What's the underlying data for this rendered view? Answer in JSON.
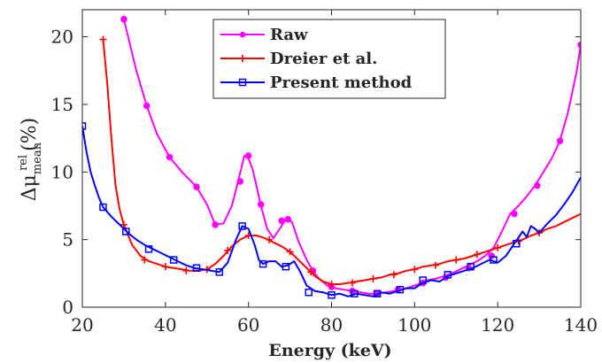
{
  "chart_data": {
    "type": "line",
    "xlabel": "Energy (keV)",
    "ylabel": "Δμ_mean^rel (%)",
    "xlim": [
      20,
      140
    ],
    "ylim": [
      0,
      22
    ],
    "xticks": [
      20,
      40,
      60,
      80,
      100,
      120,
      140
    ],
    "yticks": [
      0,
      5,
      10,
      15,
      20
    ],
    "xtick_labels": [
      "20",
      "40",
      "60",
      "80",
      "100",
      "120",
      "140"
    ],
    "ytick_labels": [
      "0",
      "5",
      "10",
      "15",
      "20"
    ],
    "grid": false,
    "legend_position": "top-center",
    "series": [
      {
        "name": "Raw",
        "color": "#ff00ff",
        "marker": "circle",
        "x": [
          30,
          33,
          35.5,
          38,
          41,
          44,
          47.5,
          50,
          52,
          54,
          56,
          57.5,
          59,
          60,
          61,
          62,
          63,
          64.5,
          66,
          67.5,
          69,
          70.5,
          72,
          74,
          75.5,
          77,
          79,
          81,
          83,
          85,
          87,
          89,
          91,
          93,
          95,
          97,
          99,
          101,
          103,
          105,
          107,
          109,
          111,
          113,
          115,
          117,
          119,
          121,
          123,
          125,
          127,
          129,
          131,
          133,
          135,
          137,
          139,
          140
        ],
        "y": [
          21.3,
          17.5,
          14.9,
          12.8,
          11.1,
          10.0,
          8.9,
          7.6,
          6.1,
          6.2,
          7.5,
          9.3,
          11.2,
          11.0,
          10.2,
          8.9,
          7.5,
          5.8,
          5.1,
          5.8,
          6.5,
          6.3,
          4.9,
          3.5,
          2.7,
          2.1,
          1.6,
          1.4,
          1.3,
          1.2,
          1.1,
          1.0,
          1.0,
          1.1,
          1.2,
          1.3,
          1.5,
          1.7,
          2.0,
          2.1,
          2.3,
          2.5,
          2.8,
          3.1,
          3.4,
          3.8,
          4.4,
          5.6,
          6.9,
          7.5,
          8.2,
          9.0,
          10.0,
          11.0,
          12.3,
          14.5,
          17.4,
          19.4
        ],
        "marker_x": [
          30,
          35.5,
          41,
          47.5,
          52,
          58,
          60,
          63,
          68,
          69.5,
          75.5,
          80,
          85,
          91,
          96,
          102,
          107.5,
          113,
          118.5,
          124,
          129.5,
          135,
          140
        ],
        "marker_y": [
          21.3,
          14.9,
          11.1,
          8.9,
          6.1,
          9.3,
          11.2,
          7.6,
          6.4,
          6.5,
          2.7,
          1.5,
          1.2,
          1.0,
          1.3,
          1.8,
          2.2,
          2.9,
          3.8,
          6.9,
          9.0,
          12.3,
          19.4
        ]
      },
      {
        "name": "Dreier et al.",
        "color": "#ff0000",
        "marker": "plus",
        "x": [
          25,
          26,
          27,
          28,
          29,
          30,
          32,
          34,
          36,
          38,
          40,
          42,
          44,
          46,
          48,
          50,
          52,
          54,
          56,
          58,
          60,
          62,
          64,
          66,
          68,
          70,
          72,
          74,
          76,
          78,
          80,
          82,
          84,
          86,
          88,
          90,
          92,
          94,
          96,
          98,
          100,
          102,
          104,
          106,
          108,
          110,
          112,
          114,
          116,
          118,
          120,
          122,
          124,
          126,
          128,
          130,
          132,
          134,
          136,
          138,
          140
        ],
        "y": [
          19.8,
          16.5,
          12.5,
          9.0,
          7.2,
          6.1,
          4.6,
          3.8,
          3.4,
          3.2,
          3.0,
          2.9,
          2.8,
          2.7,
          2.7,
          2.8,
          3.2,
          3.8,
          4.5,
          5.0,
          5.3,
          5.3,
          5.1,
          4.8,
          4.5,
          4.1,
          3.5,
          2.9,
          2.3,
          1.9,
          1.7,
          1.7,
          1.8,
          1.9,
          2.0,
          2.1,
          2.2,
          2.4,
          2.5,
          2.7,
          2.8,
          3.0,
          3.1,
          3.2,
          3.4,
          3.5,
          3.6,
          3.8,
          4.0,
          4.2,
          4.4,
          4.6,
          4.8,
          5.0,
          5.3,
          5.5,
          5.8,
          6.0,
          6.3,
          6.6,
          6.9
        ],
        "marker_x": [
          25,
          30,
          35,
          40,
          45,
          50,
          55,
          60,
          65,
          70,
          75,
          80,
          85,
          90,
          95,
          100,
          105,
          110,
          115,
          120,
          125,
          130
        ],
        "marker_y": [
          19.8,
          6.1,
          3.5,
          3.0,
          2.7,
          2.8,
          4.2,
          5.3,
          5.0,
          4.1,
          2.6,
          1.7,
          1.8,
          2.1,
          2.4,
          2.8,
          3.1,
          3.5,
          3.9,
          4.4,
          4.9,
          5.5
        ]
      },
      {
        "name": "Present method",
        "color": "#0000ff",
        "marker": "square",
        "x": [
          20,
          21,
          22,
          23,
          24,
          25,
          27,
          29,
          31,
          33,
          35,
          37,
          39,
          41,
          43,
          45,
          47,
          49,
          51,
          53,
          55,
          57,
          58.5,
          60,
          61.5,
          62.5,
          63.5,
          65,
          66.5,
          68,
          69.5,
          71,
          72.5,
          74,
          76,
          78,
          80,
          82,
          84,
          86,
          88,
          90,
          92,
          94,
          96,
          98,
          100,
          102,
          104,
          106,
          108,
          110,
          112,
          114,
          116,
          118,
          120,
          122,
          124,
          126,
          127,
          128,
          129,
          130,
          132,
          134,
          136,
          138,
          140
        ],
        "y": [
          13.4,
          11.5,
          10.0,
          9.0,
          8.1,
          7.4,
          6.7,
          6.1,
          5.5,
          5.0,
          4.6,
          4.3,
          4.0,
          3.7,
          3.4,
          3.1,
          2.9,
          2.8,
          2.7,
          2.6,
          3.3,
          5.0,
          6.0,
          5.8,
          4.6,
          3.5,
          3.2,
          3.4,
          3.4,
          3.0,
          3.1,
          3.4,
          2.6,
          1.6,
          1.2,
          1.1,
          0.9,
          1.0,
          0.8,
          1.0,
          0.9,
          0.8,
          1.1,
          1.0,
          1.2,
          1.4,
          1.4,
          1.8,
          2.0,
          1.9,
          2.3,
          2.5,
          2.7,
          2.9,
          3.2,
          3.5,
          3.3,
          3.8,
          4.7,
          5.6,
          5.2,
          6.0,
          5.8,
          5.5,
          6.2,
          6.8,
          7.6,
          8.5,
          9.6
        ],
        "marker_x": [
          20,
          25,
          30.5,
          36,
          42,
          47.5,
          53,
          58.5,
          63.5,
          69,
          74.5,
          80,
          85.5,
          91,
          96.5,
          102,
          108,
          113.5,
          119,
          124.5
        ],
        "marker_y": [
          13.4,
          7.4,
          5.6,
          4.3,
          3.5,
          2.9,
          2.6,
          6.0,
          3.2,
          3.0,
          1.1,
          0.9,
          1.0,
          1.0,
          1.3,
          2.0,
          2.4,
          3.0,
          3.5,
          4.7
        ]
      }
    ]
  }
}
